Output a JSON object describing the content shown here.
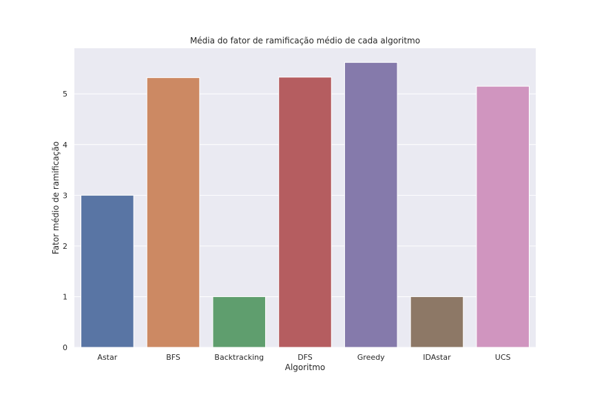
{
  "chart_data": {
    "type": "bar",
    "title": "Média do fator de ramificação médio de cada algoritmo",
    "xlabel": "Algoritmo",
    "ylabel": "Fator médio de ramificação",
    "categories": [
      "Astar",
      "BFS",
      "Backtracking",
      "DFS",
      "Greedy",
      "IDAstar",
      "UCS"
    ],
    "values": [
      3.0,
      5.32,
      1.0,
      5.33,
      5.62,
      1.0,
      5.15
    ],
    "colors": [
      "#5975a4",
      "#cc8963",
      "#5f9e6e",
      "#b55d60",
      "#857aab",
      "#8d7866",
      "#d095bf"
    ],
    "ylim": [
      0,
      5.9
    ],
    "yticks": [
      0,
      1,
      2,
      3,
      4,
      5
    ],
    "grid": true,
    "background": "#eaeaf2"
  }
}
